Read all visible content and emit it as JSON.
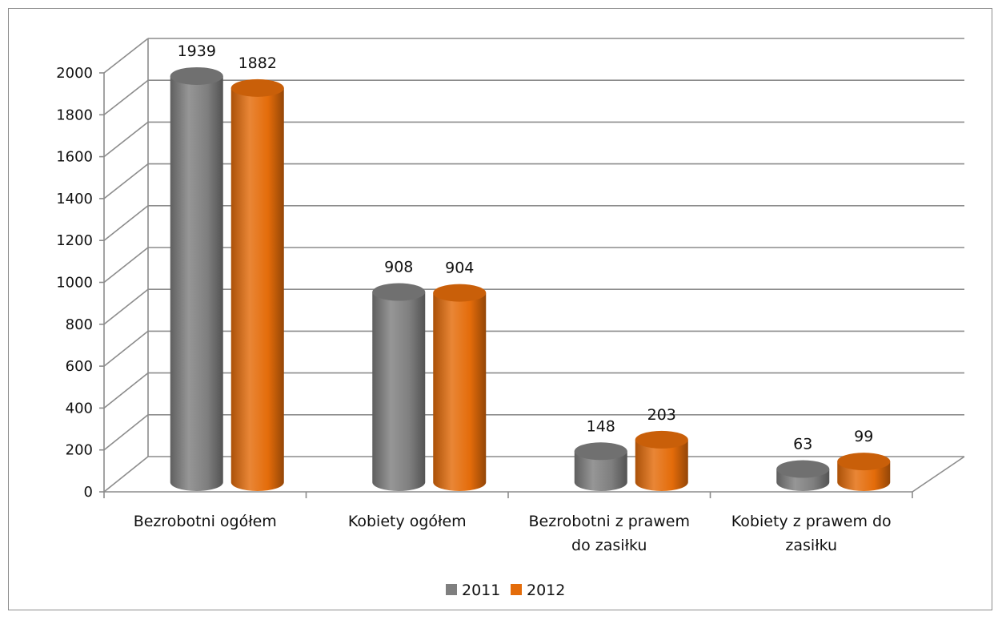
{
  "chart_data": {
    "type": "bar",
    "style": "3d-cylinder",
    "categories": [
      [
        "Bezrobotni ogółem"
      ],
      [
        "Kobiety ogółem"
      ],
      [
        "Bezrobotni z prawem",
        "do zasiłku"
      ],
      [
        "Kobiety z prawem do",
        "zasiłku"
      ]
    ],
    "series": [
      {
        "name": "2011",
        "color": "#7f7f7f",
        "values": [
          1939,
          908,
          148,
          63
        ]
      },
      {
        "name": "2012",
        "color": "#e46c0a",
        "values": [
          1882,
          904,
          203,
          99
        ]
      }
    ],
    "ylim": [
      0,
      2000
    ],
    "yticks": [
      0,
      200,
      400,
      600,
      800,
      1000,
      1200,
      1400,
      1600,
      1800,
      2000
    ],
    "grid": true,
    "legend_position": "bottom"
  }
}
